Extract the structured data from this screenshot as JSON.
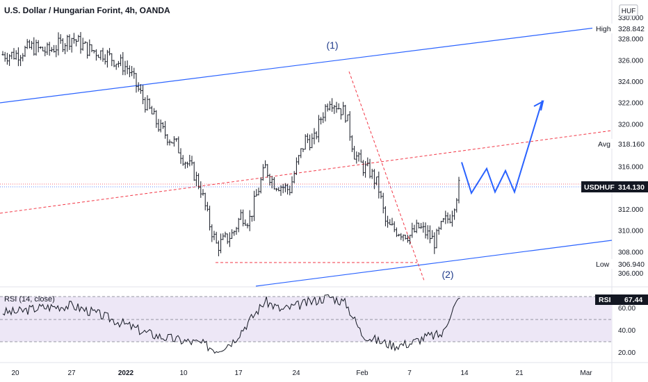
{
  "title": "U.S. Dollar / Hungarian Forint, 4h, OANDA",
  "currency": "HUF",
  "colors": {
    "candle": "#131722",
    "channel": "#2962ff",
    "dashed": "#f23645",
    "rsi": "#131722",
    "rsi_band": "#ede7f6",
    "grid": "#787b86",
    "projection": "#2962ff"
  },
  "chart_data": {
    "type": "line",
    "title": "U.S. Dollar / Hungarian Forint, 4h, OANDA",
    "price_ylim": [
      305,
      330
    ],
    "price_ticks": [
      "306.000",
      "308.000",
      "310.000",
      "312.000",
      "314.000",
      "316.000",
      "318.000",
      "320.000",
      "322.000",
      "324.000",
      "326.000",
      "328.000",
      "330.000"
    ],
    "x_ticks": [
      "20",
      "27",
      "2022",
      "10",
      "17",
      "24",
      "Feb",
      "7",
      "14",
      "21",
      "Mar"
    ],
    "price_path": [
      [
        "Dec 20",
        326.5
      ],
      [
        "Dec 22",
        327.2
      ],
      [
        "Dec 24",
        326.8
      ],
      [
        "Dec 27",
        328.1
      ],
      [
        "Dec 29",
        327.0
      ],
      [
        "Dec 31",
        326.6
      ],
      [
        "Jan 3",
        325.2
      ],
      [
        "Jan 4",
        323.6
      ],
      [
        "Jan 5",
        322.1
      ],
      [
        "Jan 6",
        320.8
      ],
      [
        "Jan 7",
        319.5
      ],
      [
        "Jan 9",
        318.0
      ],
      [
        "Jan 10",
        316.6
      ],
      [
        "Jan 11",
        315.6
      ],
      [
        "Jan 12",
        313.9
      ],
      [
        "Jan 13",
        310.8
      ],
      [
        "Jan 14",
        308.5
      ],
      [
        "Jan 16",
        309.7
      ],
      [
        "Jan 17",
        311.5
      ],
      [
        "Jan 18",
        310.9
      ],
      [
        "Jan 19",
        313.5
      ],
      [
        "Jan 20",
        315.9
      ],
      [
        "Jan 21",
        314.5
      ],
      [
        "Jan 23",
        313.8
      ],
      [
        "Jan 24",
        316.4
      ],
      [
        "Jan 25",
        318.6
      ],
      [
        "Jan 26",
        318.3
      ],
      [
        "Jan 27",
        320.8
      ],
      [
        "Jan 28",
        322.4
      ],
      [
        "Jan 30",
        320.9
      ],
      [
        "Jan 31",
        317.3
      ],
      [
        "Feb 1",
        316.0
      ],
      [
        "Feb 2",
        315.5
      ],
      [
        "Feb 3",
        314.1
      ],
      [
        "Feb 4",
        310.4
      ],
      [
        "Feb 6",
        309.8
      ],
      [
        "Feb 7",
        309.5
      ],
      [
        "Feb 8",
        310.3
      ],
      [
        "Feb 9",
        309.7
      ],
      [
        "Feb 10",
        308.9
      ],
      [
        "Feb 11",
        310.6
      ],
      [
        "Feb 12",
        311.4
      ],
      [
        "Feb 13",
        314.13
      ]
    ],
    "price_labels": {
      "high": {
        "label": "High",
        "value": "328.842"
      },
      "avg": {
        "label": "Avg",
        "value": "318.160"
      },
      "last": {
        "label": "USDHUF",
        "value": "314.130"
      },
      "low": {
        "label": "Low",
        "value": "306.940"
      }
    },
    "annotations": [
      "(1)",
      "(2)"
    ],
    "projection_path": [
      316.4,
      313.5,
      315.8,
      313.6,
      315.6,
      313.6,
      322.2
    ],
    "rsi": {
      "label": "RSI (14, close)",
      "value": "67.44",
      "ylim": [
        10,
        80
      ],
      "ticks": [
        "20.00",
        "40.00",
        "60.00"
      ],
      "bands": [
        30,
        50,
        70
      ],
      "path": [
        [
          "Dec 20",
          56
        ],
        [
          "Dec 23",
          60
        ],
        [
          "Dec 27",
          62
        ],
        [
          "Dec 30",
          55
        ],
        [
          "Jan 3",
          44
        ],
        [
          "Jan 5",
          38
        ],
        [
          "Jan 7",
          34
        ],
        [
          "Jan 10",
          30
        ],
        [
          "Jan 12",
          28
        ],
        [
          "Jan 14",
          22
        ],
        [
          "Jan 16",
          30
        ],
        [
          "Jan 18",
          48
        ],
        [
          "Jan 20",
          66
        ],
        [
          "Jan 22",
          58
        ],
        [
          "Jan 24",
          62
        ],
        [
          "Jan 26",
          66
        ],
        [
          "Jan 28",
          70
        ],
        [
          "Jan 30",
          64
        ],
        [
          "Feb 1",
          36
        ],
        [
          "Feb 3",
          30
        ],
        [
          "Feb 5",
          26
        ],
        [
          "Feb 7",
          28
        ],
        [
          "Feb 9",
          34
        ],
        [
          "Feb 11",
          36
        ],
        [
          "Feb 12",
          56
        ],
        [
          "Feb 13",
          67.44
        ]
      ]
    }
  }
}
